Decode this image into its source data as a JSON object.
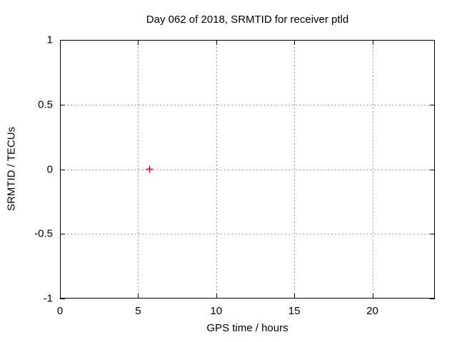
{
  "chart_data": {
    "type": "scatter",
    "title": "Day 062 of 2018, SRMTID for receiver ptld",
    "xlabel": "GPS time / hours",
    "ylabel": "SRMTID / TECUs",
    "xlim": [
      0,
      24
    ],
    "ylim": [
      -1,
      1
    ],
    "grid": true,
    "legend": "none",
    "x_ticks": [
      {
        "value": 0,
        "label": "0"
      },
      {
        "value": 5,
        "label": "5"
      },
      {
        "value": 10,
        "label": "10"
      },
      {
        "value": 15,
        "label": "15"
      },
      {
        "value": 20,
        "label": "20"
      }
    ],
    "y_ticks": [
      {
        "value": 1,
        "label": "1"
      },
      {
        "value": 0.5,
        "label": "0.5"
      },
      {
        "value": 0,
        "label": "0"
      },
      {
        "value": -0.5,
        "label": "-0.5"
      },
      {
        "value": -1,
        "label": "-1"
      }
    ],
    "series": [
      {
        "name": "SRMTID",
        "marker": "plus",
        "color": "#ff0000",
        "points": [
          {
            "x": 5.75,
            "y": 0.0
          }
        ]
      }
    ]
  },
  "colors": {
    "background": "#ffffff",
    "plot_border": "#000000",
    "grid": "#999999",
    "text": "#000000",
    "marker": "#ff0000"
  }
}
